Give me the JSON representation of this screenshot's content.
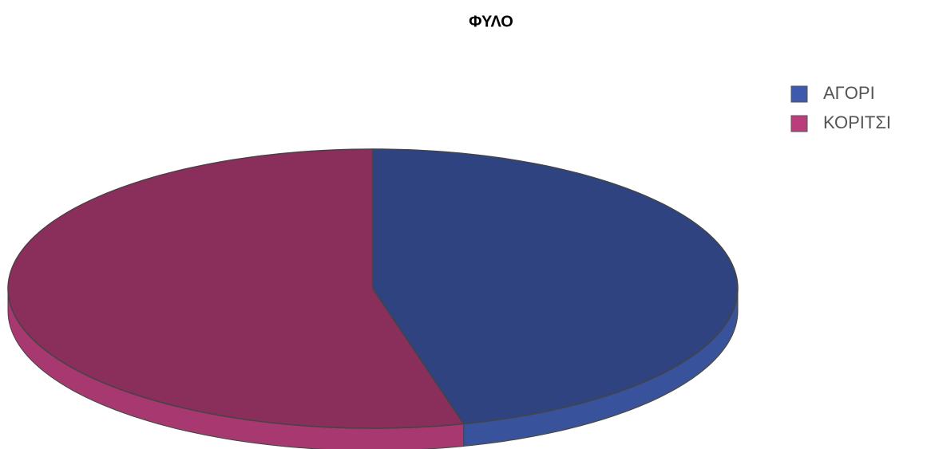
{
  "chart_data": {
    "type": "pie3d",
    "title": "ΦΥΛΟ",
    "categories": [
      "ΑΓΟΡΙ",
      "ΚΟΡΙΤΣΙ"
    ],
    "values": [
      46,
      54
    ],
    "colors": [
      "#2e4380",
      "#8a2e5c"
    ],
    "legend": "right"
  }
}
